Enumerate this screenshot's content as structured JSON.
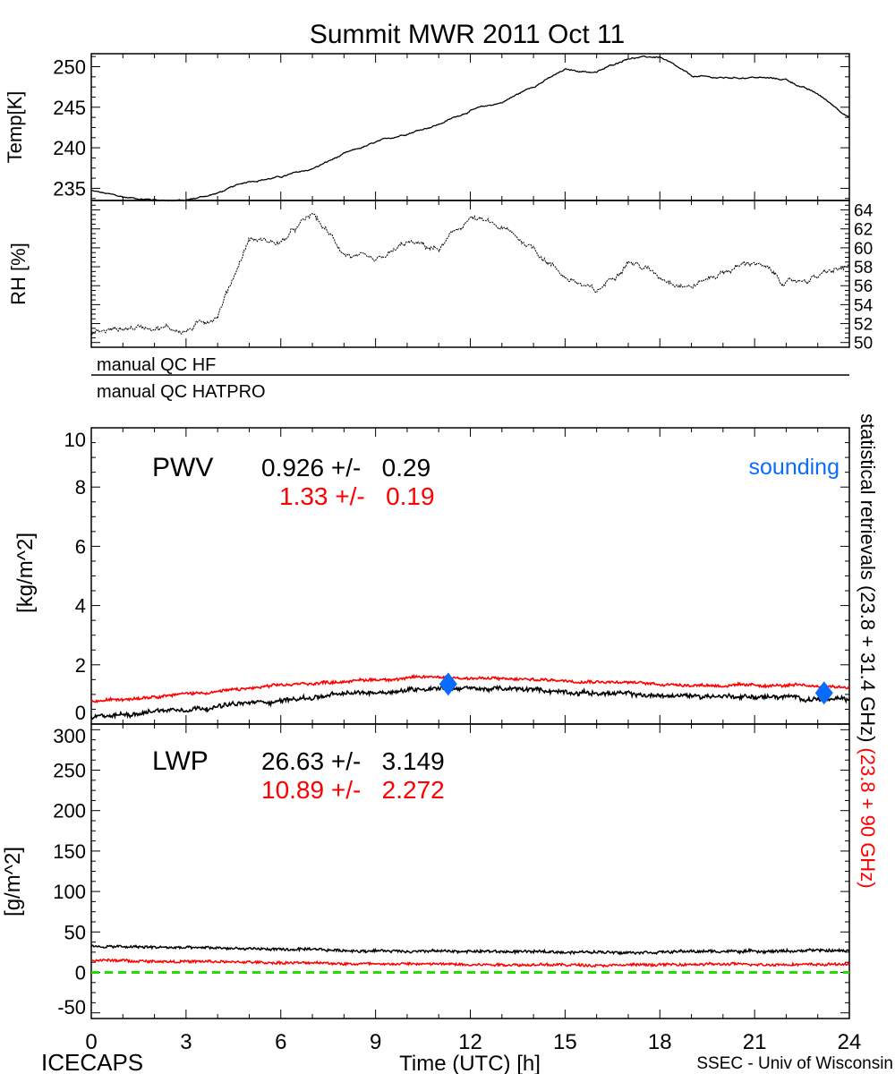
{
  "title": "Summit MWR 2011 Oct 11",
  "footer": {
    "left": "ICECAPS",
    "center": "Time (UTC) [h]",
    "right": "SSEC - Univ of Wisconsin"
  },
  "xaxis": {
    "range": [
      0,
      24
    ],
    "ticks": [
      "0",
      "3",
      "6",
      "9",
      "12",
      "15",
      "18",
      "21",
      "24"
    ],
    "tick_values": [
      0,
      3,
      6,
      9,
      12,
      15,
      18,
      21,
      24
    ]
  },
  "qc": {
    "hf": "manual QC HF",
    "hatpro": "manual QC HATPRO"
  },
  "right_label": {
    "black": "statistical retrievals (23.8 + 31.4 GHz)",
    "red": "(23.8 + 90 GHz)"
  },
  "colors": {
    "series1": "#000000",
    "series2": "#ff0000",
    "sounding": "#0a6cff",
    "zero_line": "#22dd00"
  },
  "chart_data": [
    {
      "type": "line",
      "name": "temp",
      "ylabel": "Temp[K]",
      "ylim": [
        233.5,
        251.6
      ],
      "yticks": [
        "235",
        "240",
        "245",
        "250"
      ],
      "ytick_values": [
        235,
        240,
        245,
        250
      ],
      "x": [
        0,
        1,
        2,
        3,
        4,
        5,
        6,
        7,
        8,
        9,
        10,
        11,
        12,
        13,
        14,
        15,
        16,
        17,
        18,
        19,
        20,
        21,
        22,
        23,
        24
      ],
      "values": [
        234.7,
        233.9,
        233.6,
        233.5,
        234.4,
        235.9,
        236.4,
        237.4,
        239.2,
        240.6,
        241.8,
        242.9,
        244.6,
        245.6,
        247.6,
        249.6,
        249.3,
        251.1,
        251.2,
        248.8,
        248.6,
        248.7,
        248.4,
        246.6,
        243.8
      ]
    },
    {
      "type": "line",
      "name": "rh",
      "ylabel": "RH [%]",
      "ylim": [
        49.5,
        65
      ],
      "yticks": [
        "50",
        "52",
        "54",
        "56",
        "58",
        "60",
        "62",
        "64"
      ],
      "ytick_values": [
        50,
        52,
        54,
        56,
        58,
        60,
        62,
        64
      ],
      "x": [
        0,
        1,
        2,
        3,
        4,
        5,
        6,
        7,
        8,
        9,
        10,
        11,
        12,
        13,
        14,
        15,
        16,
        17,
        18,
        19,
        20,
        21,
        22,
        23,
        24
      ],
      "values": [
        51,
        51.5,
        51.8,
        51.2,
        53,
        61,
        60.5,
        63.5,
        59.5,
        58.2,
        60.5,
        59.8,
        63.2,
        62,
        60,
        57,
        55.2,
        58.8,
        57,
        56,
        57.5,
        58.6,
        56.2,
        57,
        58
      ]
    },
    {
      "type": "line",
      "name": "pwv",
      "ylabel": "[kg/m^2]",
      "ylim": [
        0,
        10
      ],
      "yticks": [
        "0",
        "2",
        "4",
        "6",
        "8",
        "10"
      ],
      "ytick_values": [
        0,
        2,
        4,
        6,
        8,
        10
      ],
      "annotation": {
        "label": "PWV",
        "black": "0.926 +/-   0.29",
        "red": "1.33 +/-   0.19",
        "sounding_label": "sounding"
      },
      "x": [
        0,
        2,
        4,
        6,
        8,
        10,
        11,
        12,
        14,
        16,
        18,
        20,
        22,
        24
      ],
      "series": [
        {
          "name": "23.8 + 31.4 GHz",
          "values": [
            0.2,
            0.45,
            0.6,
            0.8,
            1.0,
            1.15,
            1.25,
            1.2,
            1.15,
            1.05,
            0.95,
            0.95,
            0.9,
            0.8
          ]
        },
        {
          "name": "23.8 + 90 GHz",
          "values": [
            0.75,
            0.95,
            1.1,
            1.3,
            1.45,
            1.55,
            1.6,
            1.55,
            1.5,
            1.45,
            1.35,
            1.3,
            1.3,
            1.25
          ]
        }
      ],
      "soundings": [
        {
          "x": 11.3,
          "y": 1.35
        },
        {
          "x": 23.2,
          "y": 1.05
        }
      ]
    },
    {
      "type": "line",
      "name": "lwp",
      "ylabel": "[g/m^2]",
      "ylim": [
        -57,
        307
      ],
      "yticks": [
        "-50",
        "0",
        "50",
        "100",
        "150",
        "200",
        "250",
        "300"
      ],
      "ytick_values": [
        -50,
        0,
        50,
        100,
        150,
        200,
        250,
        300
      ],
      "annotation": {
        "label": "LWP",
        "black": "26.63 +/-   3.149",
        "red": "10.89 +/-   2.272"
      },
      "x": [
        0,
        4,
        8,
        12,
        16,
        20,
        24
      ],
      "series": [
        {
          "name": "23.8 + 31.4 GHz",
          "values": [
            32,
            30,
            27,
            26,
            25,
            26,
            27
          ]
        },
        {
          "name": "23.8 + 90 GHz",
          "values": [
            15,
            13,
            11,
            10,
            9,
            10,
            10
          ]
        }
      ],
      "zero_line": 0
    }
  ]
}
